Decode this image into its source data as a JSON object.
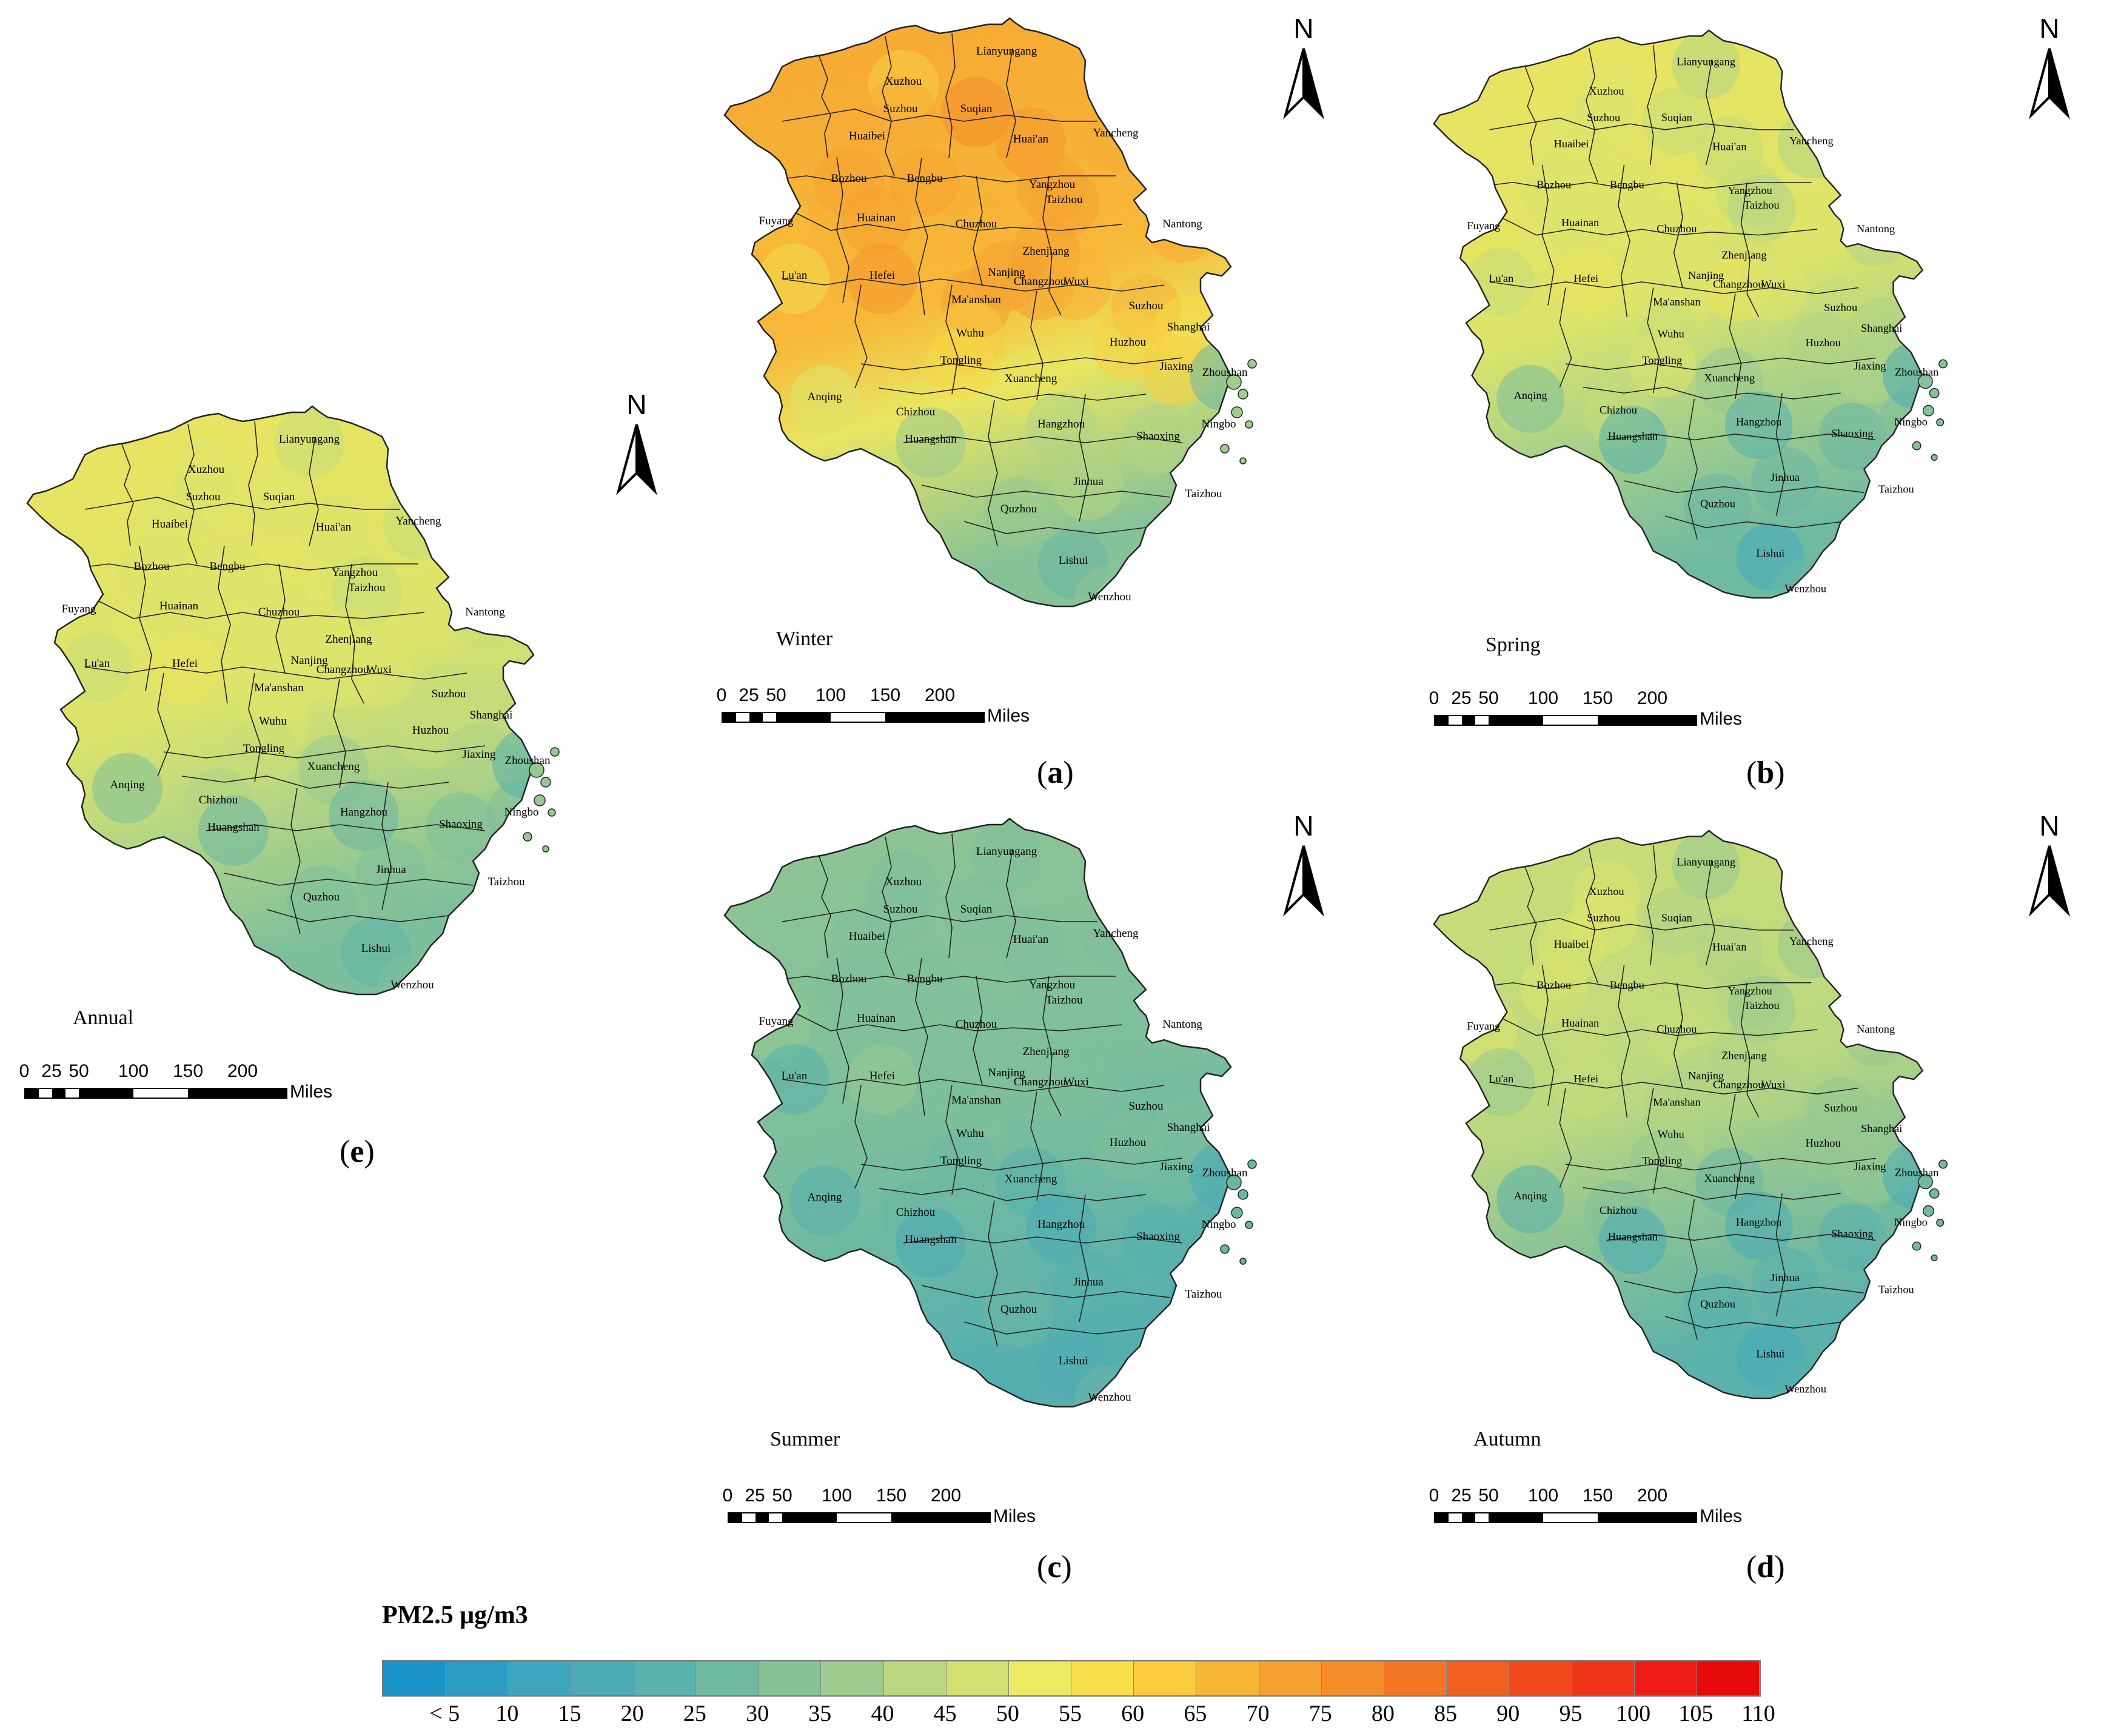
{
  "cities": [
    {
      "name": "Lianyungang"
    },
    {
      "name": "Xuzhou"
    },
    {
      "name": "Suqian"
    },
    {
      "name": "Suzhou"
    },
    {
      "name": "Huaibei"
    },
    {
      "name": "Huai'an"
    },
    {
      "name": "Yancheng"
    },
    {
      "name": "Bozhou"
    },
    {
      "name": "Bengbu"
    },
    {
      "name": "Yangzhou"
    },
    {
      "name": "Taizhou"
    },
    {
      "name": "Fuyang"
    },
    {
      "name": "Huainan"
    },
    {
      "name": "Chuzhou"
    },
    {
      "name": "Nantong"
    },
    {
      "name": "Zhenjiang"
    },
    {
      "name": "Lu'an"
    },
    {
      "name": "Hefei"
    },
    {
      "name": "Nanjing"
    },
    {
      "name": "Changzhou"
    },
    {
      "name": "Wuxi"
    },
    {
      "name": "Ma'anshan"
    },
    {
      "name": "Suzhou"
    },
    {
      "name": "Shanghai"
    },
    {
      "name": "Wuhu"
    },
    {
      "name": "Huzhou"
    },
    {
      "name": "Tongling"
    },
    {
      "name": "Jiaxing"
    },
    {
      "name": "Xuancheng"
    },
    {
      "name": "Anqing"
    },
    {
      "name": "Chizhou"
    },
    {
      "name": "Hangzhou"
    },
    {
      "name": "Huangshan"
    },
    {
      "name": "Shaoxing"
    },
    {
      "name": "Ningbo"
    },
    {
      "name": "Zhoushan"
    },
    {
      "name": "Jinhua"
    },
    {
      "name": "Taizhou"
    },
    {
      "name": "Quzhou"
    },
    {
      "name": "Lishui"
    },
    {
      "name": "Wenzhou"
    }
  ],
  "panels": [
    {
      "id": "a",
      "season": "Winter",
      "letter": "a",
      "level": 0.72,
      "south_level": 0.3,
      "pm25_by_city": [
        80,
        70,
        88,
        80,
        80,
        85,
        80,
        82,
        82,
        82,
        82,
        75,
        82,
        78,
        80,
        82,
        65,
        85,
        82,
        82,
        78,
        82,
        78,
        68,
        72,
        70,
        68,
        70,
        60,
        55,
        60,
        45,
        40,
        45,
        45,
        30,
        45,
        40,
        40,
        30,
        38
      ]
    },
    {
      "id": "b",
      "season": "Spring",
      "letter": "b",
      "level": 0.52,
      "south_level": 0.25,
      "pm25_by_city": [
        45,
        55,
        50,
        55,
        55,
        50,
        45,
        55,
        55,
        50,
        45,
        60,
        55,
        55,
        45,
        52,
        50,
        60,
        55,
        60,
        55,
        55,
        50,
        45,
        50,
        45,
        55,
        45,
        40,
        35,
        50,
        25,
        25,
        30,
        35,
        20,
        30,
        35,
        30,
        18,
        30
      ]
    },
    {
      "id": "c",
      "season": "Summer",
      "letter": "c",
      "level": 0.32,
      "south_level": 0.18,
      "pm25_by_city": [
        35,
        35,
        35,
        35,
        35,
        35,
        35,
        35,
        35,
        35,
        35,
        40,
        35,
        35,
        35,
        35,
        25,
        40,
        35,
        35,
        35,
        35,
        32,
        35,
        35,
        35,
        30,
        32,
        25,
        25,
        30,
        20,
        20,
        25,
        25,
        20,
        25,
        20,
        30,
        22,
        30
      ]
    },
    {
      "id": "d",
      "season": "Autumn",
      "letter": "d",
      "level": 0.44,
      "south_level": 0.2,
      "pm25_by_city": [
        40,
        55,
        45,
        55,
        55,
        45,
        40,
        55,
        50,
        45,
        40,
        55,
        50,
        50,
        40,
        45,
        40,
        50,
        45,
        45,
        45,
        45,
        40,
        40,
        45,
        40,
        40,
        40,
        30,
        25,
        35,
        20,
        20,
        25,
        30,
        20,
        25,
        25,
        25,
        18,
        25
      ]
    },
    {
      "id": "e",
      "season": "Annual",
      "letter": "e",
      "level": 0.52,
      "south_level": 0.28,
      "pm25_by_city": [
        50,
        55,
        55,
        55,
        55,
        55,
        50,
        55,
        55,
        55,
        50,
        55,
        55,
        55,
        50,
        55,
        50,
        60,
        55,
        55,
        55,
        55,
        50,
        50,
        55,
        50,
        50,
        45,
        40,
        35,
        45,
        30,
        30,
        35,
        35,
        25,
        35,
        35,
        35,
        28,
        35
      ]
    }
  ],
  "north_label": "N",
  "scale": {
    "ticks": [
      "0",
      "25",
      "50",
      "100",
      "150",
      "200"
    ],
    "unit": "Miles"
  },
  "legend": {
    "title": "PM2.5 μg/m3",
    "labels": [
      "< 5",
      "10",
      "15",
      "20",
      "25",
      "30",
      "35",
      "40",
      "45",
      "50",
      "55",
      "60",
      "65",
      "70",
      "75",
      "80",
      "85",
      "90",
      "95",
      "100",
      "105",
      "110"
    ],
    "colors": [
      "#1a93c9",
      "#2b9dc4",
      "#3fa6c0",
      "#4aaab5",
      "#5bb1ab",
      "#6fb8a2",
      "#86c298",
      "#a0cd8f",
      "#bbd880",
      "#d4e070",
      "#ecea62",
      "#f8e04c",
      "#f9cb3d",
      "#f8b636",
      "#f6a030",
      "#f58c2a",
      "#f37625",
      "#f26020",
      "#f04a1c",
      "#ef3418",
      "#ee1c14",
      "#e60a0a"
    ],
    "ramp_colors": [
      "#1a93c9",
      "#3fa6c0",
      "#5bb1ab",
      "#86c298",
      "#bbd880",
      "#e6e765",
      "#f8d845",
      "#f7b035",
      "#f48a2b",
      "#f16322",
      "#ee3a18"
    ]
  }
}
